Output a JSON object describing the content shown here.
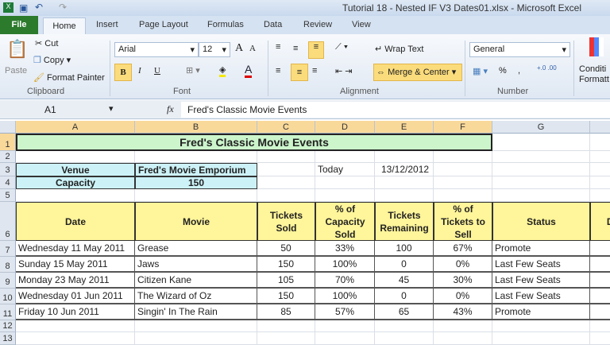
{
  "window": {
    "title": "Tutorial 18 - Nested IF V3 Dates01.xlsx  -  Microsoft Excel"
  },
  "tabs": [
    "File",
    "Home",
    "Insert",
    "Page Layout",
    "Formulas",
    "Data",
    "Review",
    "View"
  ],
  "ribbon": {
    "clipboard": {
      "paste": "Paste",
      "cut": "Cut",
      "copy": "Copy",
      "format_painter": "Format Painter",
      "label": "Clipboard"
    },
    "font": {
      "name": "Arial",
      "size": "12",
      "label": "Font",
      "bold": "B",
      "italic": "I",
      "underline": "U"
    },
    "alignment": {
      "wrap_text": "Wrap Text",
      "merge_center": "Merge & Center",
      "label": "Alignment"
    },
    "number": {
      "format": "General",
      "percent": "%",
      "comma": ",",
      "label": "Number"
    },
    "styles": {
      "conditional": "Conditi",
      "formatting": "Formatt"
    }
  },
  "formula_bar": {
    "name_box": "A1",
    "fx": "fx",
    "content": "Fred's Classic Movie Events"
  },
  "columns": [
    "A",
    "B",
    "C",
    "D",
    "E",
    "F",
    "G",
    ""
  ],
  "rows": [
    "1",
    "2",
    "3",
    "4",
    "5",
    "6",
    "7",
    "8",
    "9",
    "10",
    "11",
    "12",
    "13"
  ],
  "sheet": {
    "title": "Fred's Classic Movie Events",
    "venue_label": "Venue",
    "venue": "Fred's Movie Emporium",
    "capacity_label": "Capacity",
    "capacity": "150",
    "today_label": "Today",
    "today": "13/12/2012",
    "headers": [
      "Date",
      "Movie",
      "Tickets Sold",
      "% of Capacity Sold",
      "Tickets Remaining",
      "% of Tickets to Sell",
      "Status",
      "Da"
    ],
    "data": [
      [
        "Wednesday 11 May 2011",
        "Grease",
        "50",
        "33%",
        "100",
        "67%",
        "Promote"
      ],
      [
        "Sunday 15 May 2011",
        "Jaws",
        "150",
        "100%",
        "0",
        "0%",
        "Last Few Seats"
      ],
      [
        "Monday 23 May 2011",
        "Citizen Kane",
        "105",
        "70%",
        "45",
        "30%",
        "Last Few Seats"
      ],
      [
        "Wednesday 01 Jun 2011",
        "The Wizard of Oz",
        "150",
        "100%",
        "0",
        "0%",
        "Last Few Seats"
      ],
      [
        "Friday 10 Jun 2011",
        "Singin' In The Rain",
        "85",
        "57%",
        "65",
        "43%",
        "Promote"
      ]
    ]
  },
  "colors": {
    "title_fill": "#ccf5cc",
    "info_fill": "#ccf2f7",
    "header_fill": "#fff59a",
    "selection": "#f9d99a"
  }
}
